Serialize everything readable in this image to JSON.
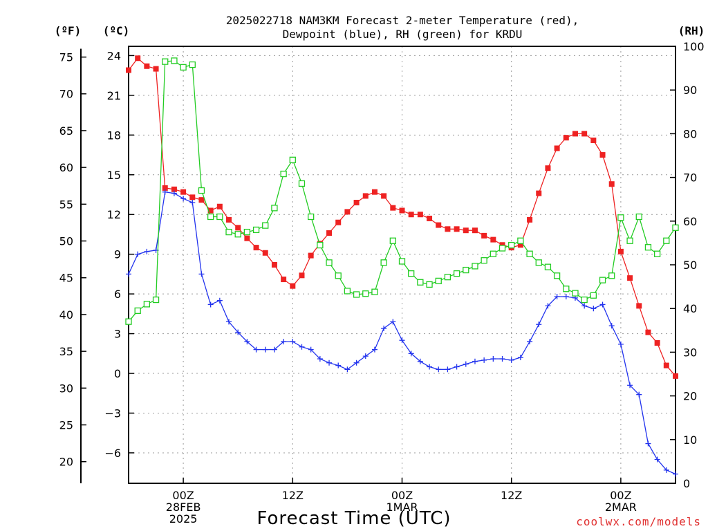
{
  "chart_data": {
    "type": "line",
    "title_lines": [
      "2025022718 NAM3KM Forecast 2-meter Temperature (red),",
      "Dewpoint (blue), RH (green) for KRDU"
    ],
    "xlabel": "Forecast Time (UTC)",
    "credit": "coolwx.com/models",
    "x_units": "forecast hour from 2025-02-27 18Z",
    "xlim": [
      0,
      60
    ],
    "x_ticks": [
      {
        "x": 6,
        "lines": [
          "00Z",
          "28FEB",
          "2025"
        ]
      },
      {
        "x": 18,
        "lines": [
          "12Z"
        ]
      },
      {
        "x": 30,
        "lines": [
          "00Z",
          "1MAR"
        ]
      },
      {
        "x": 42,
        "lines": [
          "12Z"
        ]
      },
      {
        "x": 54,
        "lines": [
          "00Z",
          "2MAR"
        ]
      }
    ],
    "y_celsius": {
      "unit_label": "(ºC)",
      "lim": [
        -8.3,
        24.7
      ],
      "ticks": [
        24,
        21,
        18,
        15,
        12,
        9,
        6,
        3,
        0,
        -3,
        -6
      ],
      "tick_labels": [
        "24",
        "21",
        "18",
        "15",
        "12",
        "9",
        "6",
        "3",
        "0",
        "−3",
        "−6"
      ]
    },
    "y_fahrenheit": {
      "unit_label": "(ºF)",
      "ticks": [
        75,
        70,
        65,
        60,
        55,
        50,
        45,
        40,
        35,
        30,
        25,
        20
      ],
      "tick_labels": [
        "75",
        "70",
        "65",
        "60",
        "55",
        "50",
        "45",
        "40",
        "35",
        "30",
        "25",
        "20"
      ]
    },
    "y_rh": {
      "unit_label": "(RH)",
      "lim": [
        0,
        100
      ],
      "ticks": [
        0,
        10,
        20,
        30,
        40,
        50,
        60,
        70,
        80,
        90,
        100
      ],
      "tick_labels": [
        "0",
        "10",
        "20",
        "30",
        "40",
        "50",
        "60",
        "70",
        "80",
        "90",
        "100"
      ]
    },
    "grid": true,
    "series": [
      {
        "name": "Temperature",
        "color": "#ee2222",
        "marker": "filled-square",
        "axis": "celsius",
        "x": [
          0,
          1,
          2,
          3,
          4,
          5,
          6,
          7,
          8,
          9,
          10,
          11,
          12,
          13,
          14,
          15,
          16,
          17,
          18,
          19,
          20,
          21,
          22,
          23,
          24,
          25,
          26,
          27,
          28,
          29,
          30,
          31,
          32,
          33,
          34,
          35,
          36,
          37,
          38,
          39,
          40,
          41,
          42,
          43,
          44,
          45,
          46,
          47,
          48,
          49,
          50,
          51,
          52,
          53,
          54,
          55,
          56,
          57,
          58,
          59,
          60
        ],
        "values": [
          22.9,
          23.8,
          23.2,
          23.0,
          14.0,
          13.9,
          13.7,
          13.3,
          13.1,
          12.3,
          12.6,
          11.6,
          11.0,
          10.2,
          9.5,
          9.1,
          8.2,
          7.1,
          6.6,
          7.4,
          8.9,
          9.8,
          10.6,
          11.4,
          12.2,
          12.9,
          13.4,
          13.7,
          13.4,
          12.5,
          12.3,
          12.0,
          12.0,
          11.7,
          11.2,
          10.9,
          10.9,
          10.8,
          10.8,
          10.4,
          10.1,
          9.7,
          9.5,
          9.7,
          11.6,
          13.6,
          15.5,
          17.0,
          17.8,
          18.1,
          18.1,
          17.6,
          16.5,
          14.3,
          9.2,
          7.2,
          5.1,
          3.1,
          2.3,
          0.6,
          -0.2
        ]
      },
      {
        "name": "Dewpoint",
        "color": "#2233ee",
        "marker": "plus",
        "axis": "celsius",
        "x": [
          0,
          1,
          2,
          3,
          4,
          5,
          6,
          7,
          8,
          9,
          10,
          11,
          12,
          13,
          14,
          15,
          16,
          17,
          18,
          19,
          20,
          21,
          22,
          23,
          24,
          25,
          26,
          27,
          28,
          29,
          30,
          31,
          32,
          33,
          34,
          35,
          36,
          37,
          38,
          39,
          40,
          41,
          42,
          43,
          44,
          45,
          46,
          47,
          48,
          49,
          50,
          51,
          52,
          53,
          54,
          55,
          56,
          57,
          58,
          59,
          60
        ],
        "values": [
          7.5,
          9.0,
          9.2,
          9.3,
          13.7,
          13.6,
          13.2,
          12.9,
          7.5,
          5.2,
          5.5,
          3.9,
          3.1,
          2.4,
          1.8,
          1.8,
          1.8,
          2.4,
          2.4,
          2.0,
          1.8,
          1.1,
          0.8,
          0.6,
          0.3,
          0.8,
          1.3,
          1.8,
          3.4,
          3.9,
          2.5,
          1.5,
          0.9,
          0.5,
          0.3,
          0.3,
          0.5,
          0.7,
          0.9,
          1.0,
          1.1,
          1.1,
          1.0,
          1.2,
          2.4,
          3.7,
          5.1,
          5.8,
          5.8,
          5.7,
          5.1,
          4.9,
          5.2,
          3.6,
          2.2,
          -0.9,
          -1.6,
          -5.3,
          -6.5,
          -7.3,
          -7.6
        ]
      },
      {
        "name": "RH",
        "color": "#22cc22",
        "marker": "open-square",
        "axis": "rh",
        "x": [
          0,
          1,
          2,
          3,
          4,
          5,
          6,
          7,
          8,
          9,
          10,
          11,
          12,
          13,
          14,
          15,
          16,
          17,
          18,
          19,
          20,
          21,
          22,
          23,
          24,
          25,
          26,
          27,
          28,
          29,
          30,
          31,
          32,
          33,
          34,
          35,
          36,
          37,
          38,
          39,
          40,
          41,
          42,
          43,
          44,
          45,
          46,
          47,
          48,
          49,
          50,
          51,
          52,
          53,
          54,
          55,
          56,
          57,
          58,
          59,
          60
        ],
        "values": [
          37,
          39.5,
          41,
          42,
          96.5,
          96.7,
          95.2,
          95.8,
          67,
          61,
          61,
          57.5,
          57,
          57.5,
          58,
          59,
          63,
          70.8,
          74,
          68.6,
          61,
          54.5,
          50.5,
          47.5,
          44,
          43.2,
          43.4,
          43.8,
          50.5,
          55.5,
          50.8,
          48,
          46,
          45.5,
          46.3,
          47.2,
          48,
          48.8,
          49.7,
          51,
          52.5,
          53.8,
          54.5,
          55.5,
          52.5,
          50.5,
          49.5,
          47.5,
          44.5,
          43.5,
          42,
          43,
          46.5,
          47.5,
          60.8,
          55.5,
          61,
          54,
          52.5,
          55.5,
          58.5
        ]
      }
    ]
  }
}
